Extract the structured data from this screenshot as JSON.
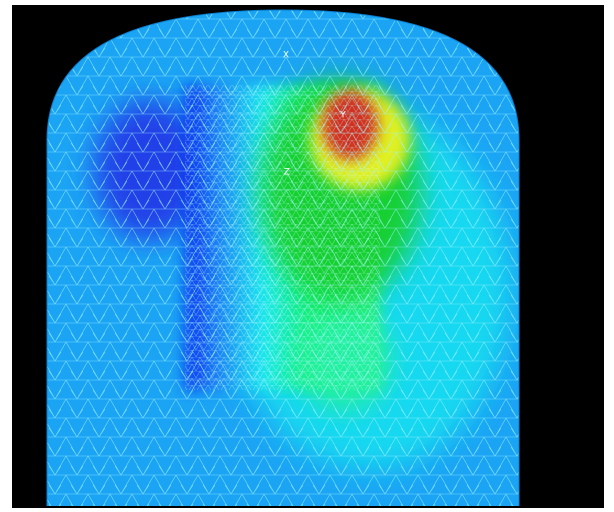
{
  "axes": {
    "labels": [
      "X",
      "Y",
      "Z"
    ]
  }
}
